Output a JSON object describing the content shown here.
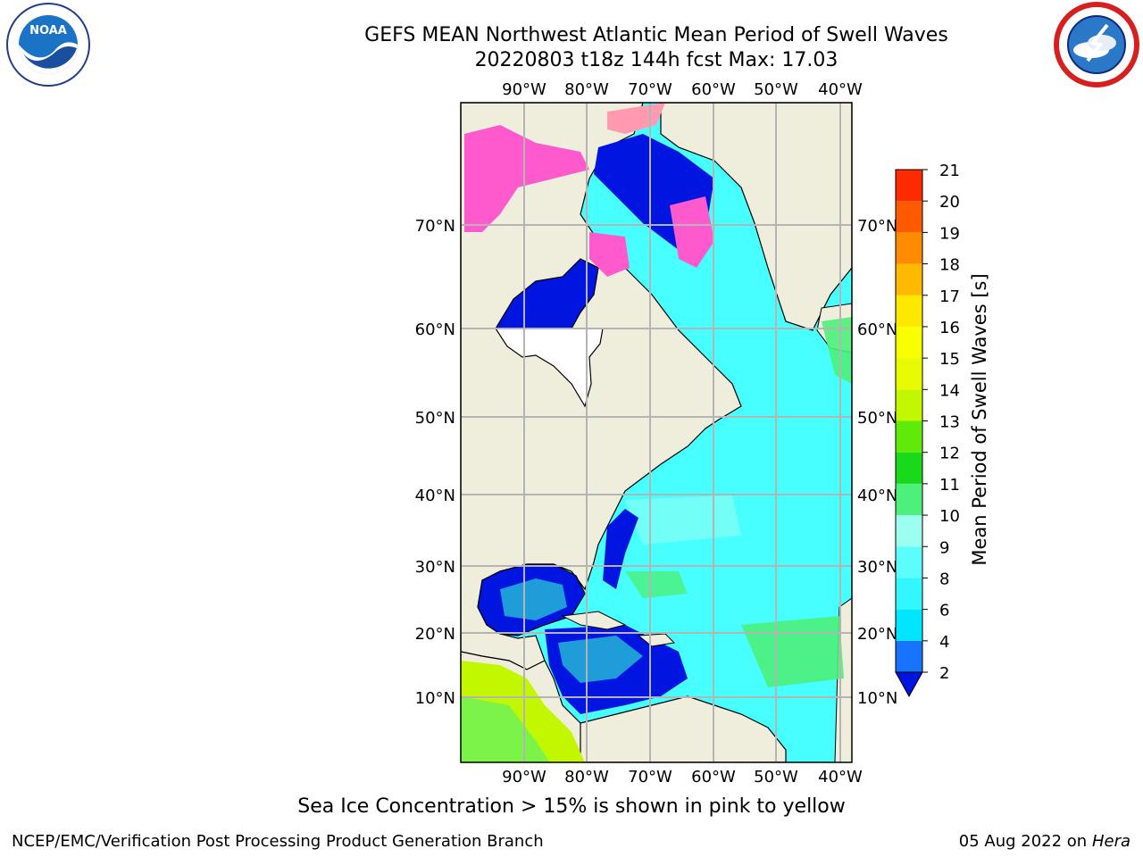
{
  "title": "GEFS MEAN Northwest Atlantic Mean Period of Swell Waves",
  "subtitle": "20220803 t18z 144h fcst   Max: 17.03",
  "caption": "Sea Ice Concentration > 15% is shown in pink to yellow",
  "footer": {
    "org": "NCEP/EMC/Verification Post Processing Product Generation Branch",
    "date": "05 Aug 2022 on",
    "machine": "Hera"
  },
  "logos": {
    "noaa_icon": "noaa-logo-icon",
    "noaa_text": "NOAA",
    "nws_icon": "nws-logo-icon"
  },
  "map": {
    "lon_labels": [
      "90°W",
      "80°W",
      "70°W",
      "60°W",
      "50°W",
      "40°W"
    ],
    "lat_labels": [
      "70°N",
      "60°N",
      "50°N",
      "40°N",
      "30°N",
      "20°N",
      "10°N"
    ]
  },
  "colorbar": {
    "label": "Mean Period of Swell Waves [s]",
    "ticks": [
      "2",
      "4",
      "6",
      "8",
      "9",
      "10",
      "11",
      "12",
      "13",
      "14",
      "15",
      "16",
      "17",
      "18",
      "19",
      "20",
      "21"
    ],
    "colors": [
      "#1874ff",
      "#00e6ff",
      "#33f7ff",
      "#5bfdfd",
      "#9dfff0",
      "#4cf07a",
      "#1ad81a",
      "#5fea0a",
      "#c3f700",
      "#e9fb00",
      "#f9ff00",
      "#ffe800",
      "#ffba00",
      "#ff8c00",
      "#ff5a00",
      "#ff2a00",
      "#ff0000"
    ],
    "under_color": "#0016e0"
  },
  "colors": {
    "land": "#efeedc",
    "ocean": "#48ffff",
    "grid": "#b4b4b4"
  }
}
